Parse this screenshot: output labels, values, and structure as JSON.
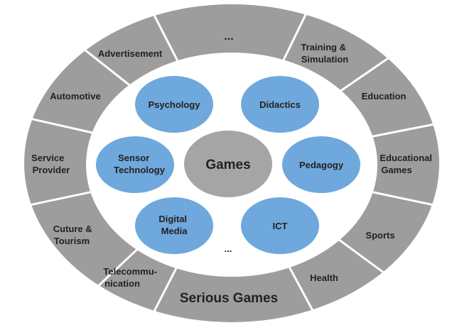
{
  "colors": {
    "ring": "#9d9d9d",
    "ring_separator": "#ffffff",
    "inner": "#ffffff",
    "circle_blue": "#6fa8dc",
    "center_gray": "#a5a5a5",
    "text": "#222222"
  },
  "outer_ring": {
    "bottom_label": "Serious Games",
    "segments": [
      {
        "lines": [
          "..."
        ]
      },
      {
        "lines": [
          "Training &",
          "Simulation"
        ]
      },
      {
        "lines": [
          "Education"
        ]
      },
      {
        "lines": [
          "Educational",
          "Games"
        ]
      },
      {
        "lines": [
          "Sports"
        ]
      },
      {
        "lines": [
          "Health"
        ]
      },
      {
        "lines": [
          "Telecommu-",
          "nication"
        ]
      },
      {
        "lines": [
          "Cuture &",
          "Tourism"
        ]
      },
      {
        "lines": [
          "Service",
          "Provider"
        ]
      },
      {
        "lines": [
          "Automotive"
        ]
      },
      {
        "lines": [
          "Advertisement"
        ]
      }
    ]
  },
  "center": {
    "label": "Games"
  },
  "inner_circles": [
    {
      "lines": [
        "Psychology"
      ]
    },
    {
      "lines": [
        "Didactics"
      ]
    },
    {
      "lines": [
        "Sensor",
        "Technology"
      ]
    },
    {
      "lines": [
        "Pedagogy"
      ]
    },
    {
      "lines": [
        "Digital",
        "Media"
      ]
    },
    {
      "lines": [
        "ICT"
      ]
    }
  ],
  "inner_ellipsis": "..."
}
